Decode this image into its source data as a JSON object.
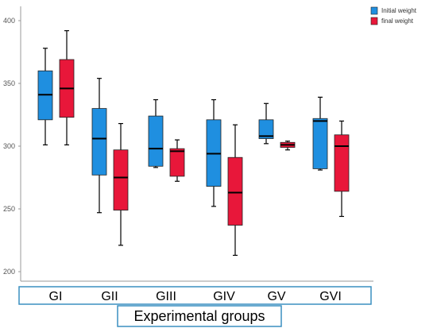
{
  "chart_data": {
    "type": "boxplot",
    "title": "",
    "xlabel": "Experimental groups",
    "ylabel": "",
    "ylim": [
      190,
      410
    ],
    "yticks": [
      200,
      250,
      300,
      350,
      400
    ],
    "grid": false,
    "legend_position": "top-right",
    "categories": [
      "GI",
      "GII",
      "GIII",
      "GIV",
      "GV",
      "GVI"
    ],
    "series": [
      {
        "name": "Initial weight",
        "color": "#1f8fe0",
        "boxes": [
          {
            "min": 301,
            "q1": 321,
            "median": 341,
            "q3": 360,
            "max": 378
          },
          {
            "min": 247,
            "q1": 277,
            "median": 306,
            "q3": 330,
            "max": 354
          },
          {
            "min": 283,
            "q1": 284,
            "median": 298,
            "q3": 324,
            "max": 337
          },
          {
            "min": 252,
            "q1": 268,
            "median": 294,
            "q3": 321,
            "max": 337
          },
          {
            "min": 302,
            "q1": 306,
            "median": 308,
            "q3": 321,
            "max": 334
          },
          {
            "min": 281,
            "q1": 282,
            "median": 320,
            "q3": 322,
            "max": 339
          }
        ]
      },
      {
        "name": "final weight",
        "color": "#e8173a",
        "boxes": [
          {
            "min": 301,
            "q1": 323,
            "median": 346,
            "q3": 369,
            "max": 392
          },
          {
            "min": 221,
            "q1": 249,
            "median": 275,
            "q3": 297,
            "max": 318
          },
          {
            "min": 272,
            "q1": 276,
            "median": 296,
            "q3": 298,
            "max": 305
          },
          {
            "min": 213,
            "q1": 237,
            "median": 263,
            "q3": 291,
            "max": 317
          },
          {
            "min": 297,
            "q1": 299,
            "median": 301,
            "q3": 303,
            "max": 304
          },
          {
            "min": 244,
            "q1": 264,
            "median": 300,
            "q3": 309,
            "max": 320
          }
        ]
      }
    ]
  }
}
